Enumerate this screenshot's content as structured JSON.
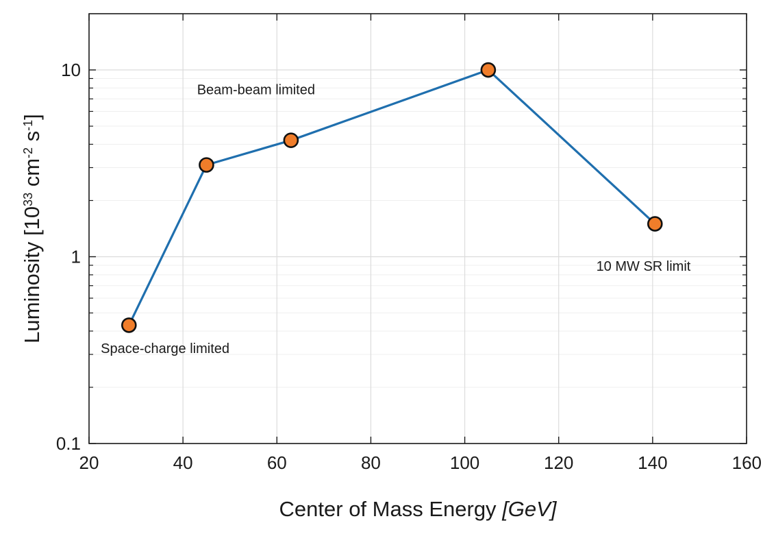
{
  "chart_data": {
    "type": "line",
    "xlabel": "Center of Mass Energy",
    "xlabel_unit": "[GeV]",
    "ylabel": "Luminosity [10",
    "ylabel_exp1": "33",
    "ylabel_mid": " cm",
    "ylabel_exp2": "-2",
    "ylabel_mid2": " s",
    "ylabel_exp3": "-1",
    "ylabel_end": "]",
    "xlim": [
      20,
      160
    ],
    "ylim": [
      0.1,
      20
    ],
    "yscale": "log",
    "grid": true,
    "x_ticks": [
      20,
      40,
      60,
      80,
      100,
      120,
      140,
      160
    ],
    "x_tick_labels": [
      "20",
      "40",
      "60",
      "80",
      "100",
      "120",
      "140",
      "160"
    ],
    "y_ticks": [
      0.1,
      1,
      10
    ],
    "y_tick_labels": [
      "0.1",
      "1",
      "10"
    ],
    "series": [
      {
        "x": [
          28.5,
          45,
          63,
          105,
          140.5
        ],
        "y": [
          0.43,
          3.1,
          4.2,
          10.0,
          1.5
        ],
        "line_color": "#1f6fae",
        "marker_color": "#f07d2a",
        "marker_edge": "#111111"
      }
    ],
    "annotations": [
      {
        "text": "Beam-beam limited",
        "x": 43,
        "y": 7.4
      },
      {
        "text": "Space-charge limited",
        "x": 22.5,
        "y": 0.305
      },
      {
        "text": "10 MW SR limit",
        "x": 128,
        "y": 0.84
      }
    ]
  }
}
